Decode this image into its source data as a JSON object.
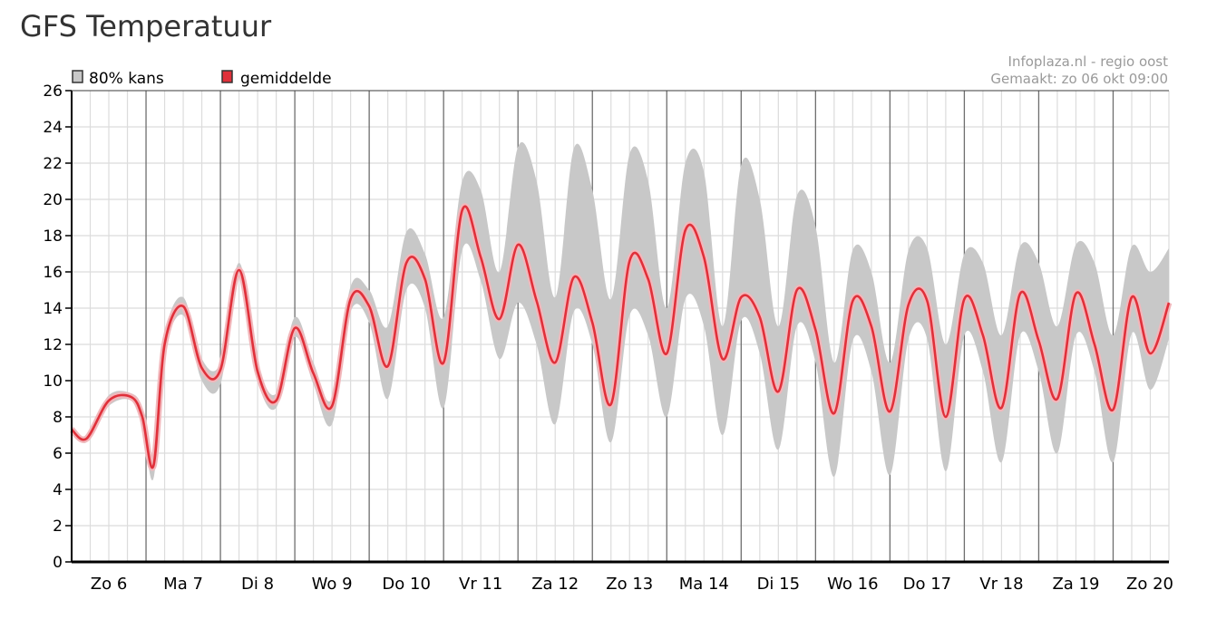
{
  "page": {
    "title": "GFS Temperatuur"
  },
  "header": {
    "source": "Infoplaza.nl - regio oost",
    "created": "Gemaakt: zo 06 okt 09:00"
  },
  "colors": {
    "band": "#c8c8c8",
    "mean": "#e0303a",
    "mean_halo": "#f2b7bb",
    "grid_minor": "#dcdcdc",
    "grid_major": "#6e6e6e",
    "axis": "#000000"
  },
  "chart_data": {
    "type": "area",
    "title": "",
    "xlabel": "",
    "ylabel": "",
    "ylim": [
      0,
      26
    ],
    "yticks": [
      0,
      2,
      4,
      6,
      8,
      10,
      12,
      14,
      16,
      18,
      20,
      22,
      24,
      26
    ],
    "xlim": [
      0,
      14.75
    ],
    "day_labels": [
      "Zo 6",
      "Ma 7",
      "Di 8",
      "Wo 9",
      "Do 10",
      "Vr 11",
      "Za 12",
      "Zo 13",
      "Ma 14",
      "Di 15",
      "Wo 16",
      "Do 17",
      "Vr 18",
      "Za 19",
      "Zo 20"
    ],
    "legend": {
      "position": "top-left",
      "entries": [
        "80% kans",
        "gemiddelde"
      ]
    },
    "grid": true,
    "x": [
      0,
      0.2,
      0.5,
      0.8,
      0.95,
      1.1,
      1.25,
      1.5,
      1.75,
      2.0,
      2.25,
      2.5,
      2.75,
      3.0,
      3.25,
      3.5,
      3.75,
      4.0,
      4.25,
      4.5,
      4.75,
      5.0,
      5.25,
      5.5,
      5.75,
      6.0,
      6.25,
      6.5,
      6.75,
      7.0,
      7.25,
      7.5,
      7.75,
      8.0,
      8.25,
      8.5,
      8.75,
      9.0,
      9.25,
      9.5,
      9.75,
      10.0,
      10.25,
      10.5,
      10.75,
      11.0,
      11.25,
      11.5,
      11.75,
      12.0,
      12.25,
      12.5,
      12.75,
      13.0,
      13.25,
      13.5,
      13.75,
      14.0,
      14.25,
      14.5,
      14.75
    ],
    "series": [
      {
        "name": "gemiddelde",
        "values": [
          7.3,
          6.8,
          8.9,
          9.1,
          8.0,
          5.3,
          12.0,
          14.1,
          10.7,
          10.6,
          16.1,
          10.5,
          8.9,
          12.9,
          10.4,
          8.6,
          14.5,
          14.1,
          10.8,
          16.5,
          15.6,
          11.0,
          19.4,
          16.8,
          13.4,
          17.5,
          14.4,
          11.0,
          15.7,
          13.2,
          8.7,
          16.6,
          15.6,
          11.5,
          18.3,
          16.8,
          11.2,
          14.6,
          13.5,
          9.4,
          15.0,
          12.8,
          8.2,
          14.4,
          13.0,
          8.3,
          14.2,
          14.4,
          8.0,
          14.5,
          12.5,
          8.5,
          14.8,
          12.2,
          9.0,
          14.8,
          12.0,
          8.4,
          14.6,
          11.5,
          14.3
        ]
      },
      {
        "name": "80% kans (bovengrens)",
        "values": [
          7.4,
          7.0,
          9.2,
          9.3,
          8.5,
          5.8,
          12.5,
          14.6,
          11.2,
          11.0,
          16.5,
          11.0,
          9.3,
          13.5,
          11.0,
          9.0,
          15.2,
          15.0,
          13.0,
          18.2,
          17.0,
          13.5,
          21.0,
          20.5,
          16.0,
          22.9,
          21.0,
          14.6,
          22.8,
          20.5,
          14.5,
          22.5,
          21.0,
          14.0,
          22.0,
          21.5,
          13.0,
          21.9,
          20.0,
          13.0,
          20.2,
          18.5,
          11.0,
          17.2,
          16.0,
          11.0,
          17.2,
          17.3,
          12.0,
          17.0,
          16.5,
          12.5,
          17.4,
          16.5,
          13.0,
          17.5,
          16.5,
          12.5,
          17.4,
          16.0,
          17.3
        ]
      },
      {
        "name": "80% kans (ondergrens)",
        "values": [
          7.2,
          6.6,
          8.6,
          8.9,
          7.5,
          4.6,
          11.5,
          13.6,
          10.0,
          9.8,
          15.7,
          10.0,
          8.5,
          12.4,
          9.8,
          7.6,
          13.8,
          13.2,
          9.0,
          15.0,
          14.0,
          8.5,
          17.2,
          15.5,
          11.2,
          14.3,
          12.0,
          7.6,
          13.8,
          12.0,
          6.6,
          13.6,
          12.5,
          8.0,
          14.5,
          13.0,
          7.0,
          13.3,
          11.5,
          6.2,
          13.0,
          11.0,
          4.7,
          12.2,
          10.5,
          4.8,
          12.3,
          12.3,
          5.0,
          12.5,
          10.5,
          5.5,
          12.5,
          10.5,
          6.0,
          12.5,
          10.5,
          5.5,
          12.6,
          9.5,
          12.3
        ]
      }
    ]
  }
}
